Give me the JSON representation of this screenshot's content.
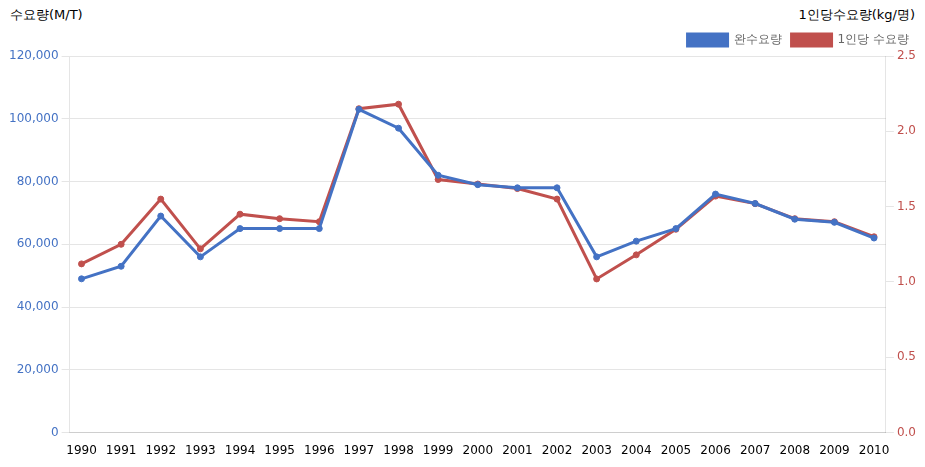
{
  "chart_data": {
    "type": "line",
    "ylabel": "수요량(M/T)",
    "y2label": "1인당수요량(kg/명)",
    "x": [
      1990,
      1991,
      1992,
      1993,
      1994,
      1995,
      1996,
      1997,
      1998,
      1999,
      2000,
      2001,
      2002,
      2003,
      2004,
      2005,
      2006,
      2007,
      2008,
      2009,
      2010
    ],
    "xlim": [
      1989.7,
      2010.3
    ],
    "xticks": [
      1990,
      1991,
      1992,
      1993,
      1994,
      1995,
      1996,
      1997,
      1998,
      1999,
      2000,
      2001,
      2002,
      2003,
      2004,
      2005,
      2006,
      2007,
      2008,
      2009,
      2010
    ],
    "series": [
      {
        "name": "완수요량",
        "color": "#4472C4",
        "values": [
          49000,
          53000,
          69000,
          56000,
          65000,
          65000,
          65000,
          103000,
          97000,
          82000,
          79000,
          78000,
          78000,
          56000,
          61000,
          65000,
          76000,
          73000,
          68000,
          67000,
          62000
        ]
      },
      {
        "name": "1인당 수요량",
        "color": "#C0504D",
        "axis": "y2",
        "values": [
          1.12,
          1.25,
          1.55,
          1.22,
          1.45,
          1.42,
          1.4,
          2.15,
          2.18,
          1.68,
          1.65,
          1.62,
          1.55,
          1.02,
          1.18,
          1.35,
          1.57,
          1.52,
          1.42,
          1.4,
          1.3
        ]
      }
    ],
    "ylim": [
      0,
      120000
    ],
    "yticks": [
      0,
      {
        "value": 20000,
        "label": "20,000"
      },
      {
        "value": 40000,
        "label": "40,000"
      },
      {
        "value": 60000,
        "label": "60,000"
      },
      {
        "value": 80000,
        "label": "80,000"
      },
      {
        "value": 100000,
        "label": "100,000"
      },
      {
        "value": 120000,
        "label": "120,000"
      }
    ],
    "y2lim": [
      0.0,
      2.5
    ],
    "y2ticks": [
      {
        "value": 0.0,
        "label": "0.0"
      },
      0.5,
      {
        "value": 1.0,
        "label": "1.0"
      },
      1.5,
      {
        "value": 2.0,
        "label": "2.0"
      },
      2.5
    ],
    "grid": "y",
    "legend": "upper right"
  }
}
